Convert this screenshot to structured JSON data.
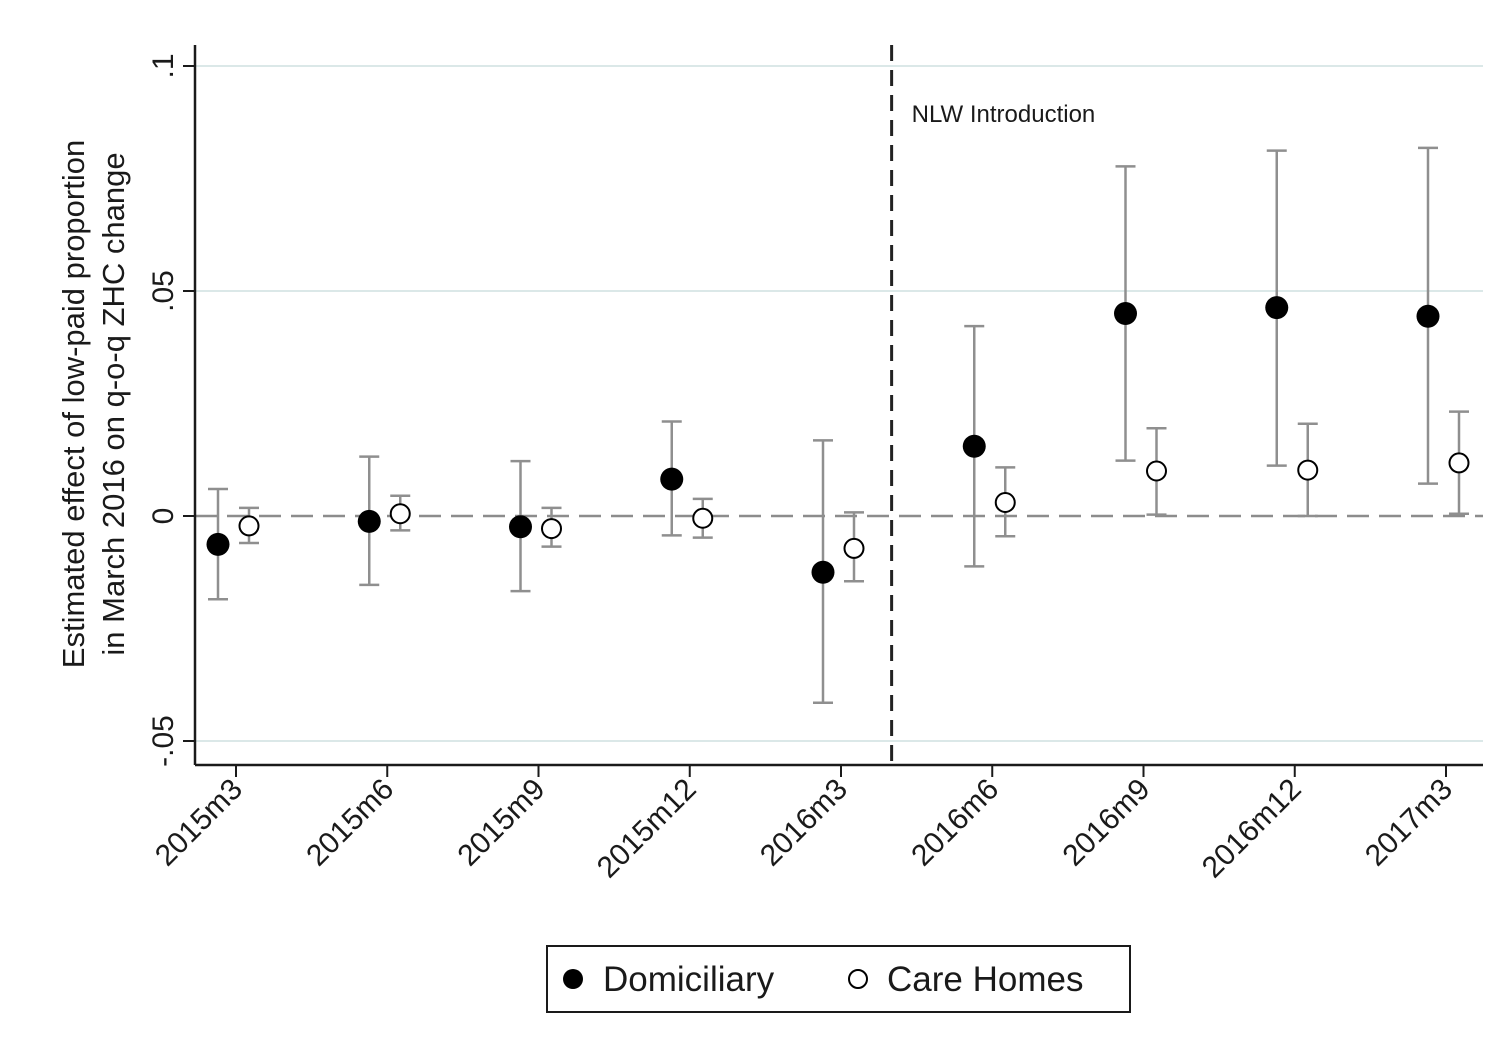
{
  "chart_data": {
    "type": "scatter",
    "subtype": "coefficient plot with 95% confidence intervals",
    "title": "",
    "xlabel": "",
    "ylabel": [
      "Estimated effect of low-paid proportion",
      "in March 2016 on q-o-q ZHC change"
    ],
    "categories": [
      "2015m3",
      "2015m6",
      "2015m9",
      "2015m12",
      "2016m3",
      "2016m6",
      "2016m9",
      "2016m12",
      "2017m3"
    ],
    "ylim": [
      -0.055,
      0.105
    ],
    "yticks": [
      {
        "value": -0.05,
        "label": "-.05"
      },
      {
        "value": 0,
        "label": "0"
      },
      {
        "value": 0.05,
        "label": ".05"
      },
      {
        "value": 0.1,
        "label": ".1"
      }
    ],
    "grid": true,
    "reference_line": {
      "y": 0,
      "style": "dashed"
    },
    "event_line": {
      "position_between": [
        "2016m3",
        "2016m6"
      ],
      "label": "NLW Introduction",
      "style": "dashed"
    },
    "legend": {
      "position": "bottom-center"
    },
    "series": [
      {
        "name": "Domiciliary",
        "marker": "filled-circle",
        "color": "#000000",
        "values": [
          -0.0063,
          -0.0012,
          -0.0024,
          0.0082,
          -0.0125,
          0.0155,
          0.045,
          0.0463,
          0.0444
        ],
        "ci_low": [
          -0.0185,
          -0.0153,
          -0.0167,
          -0.0043,
          -0.0415,
          -0.0112,
          0.0123,
          0.0112,
          0.0072
        ],
        "ci_high": [
          0.006,
          0.0132,
          0.0122,
          0.021,
          0.0168,
          0.0422,
          0.0777,
          0.0812,
          0.0818
        ]
      },
      {
        "name": "Care Homes",
        "marker": "hollow-circle",
        "color": "#000000",
        "values": [
          -0.0022,
          0.0005,
          -0.0028,
          -0.0005,
          -0.0072,
          0.003,
          0.01,
          0.0102,
          0.0118
        ],
        "ci_low": [
          -0.006,
          -0.0032,
          -0.0068,
          -0.0048,
          -0.0145,
          -0.0045,
          0.0003,
          0.0,
          0.0005
        ],
        "ci_high": [
          0.0018,
          0.0045,
          0.0018,
          0.0038,
          0.0008,
          0.0108,
          0.0195,
          0.0205,
          0.0232
        ]
      }
    ]
  }
}
